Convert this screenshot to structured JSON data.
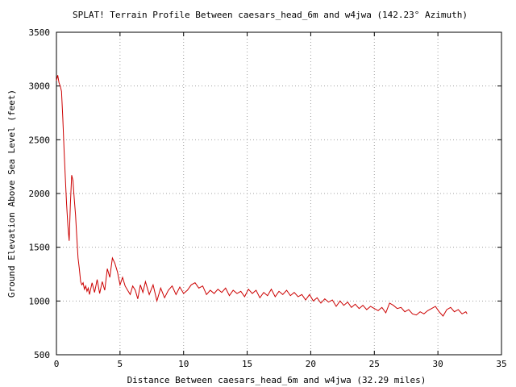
{
  "chart_data": {
    "type": "line",
    "title": "SPLAT! Terrain Profile Between caesars_head_6m and w4jwa (142.23° Azimuth)",
    "xlabel": "Distance Between caesars_head_6m and w4jwa (32.29 miles)",
    "ylabel": "Ground Elevation Above Sea Level (feet)",
    "xlim": [
      0,
      35
    ],
    "ylim": [
      500,
      3500
    ],
    "xticks": [
      0,
      5,
      10,
      15,
      20,
      25,
      30,
      35
    ],
    "yticks": [
      500,
      1000,
      1500,
      2000,
      2500,
      3000,
      3500
    ],
    "grid": true,
    "series": [
      {
        "color": "#cc0000",
        "x": [
          0.0,
          0.1,
          0.2,
          0.3,
          0.4,
          0.5,
          0.6,
          0.7,
          0.8,
          0.9,
          1.0,
          1.1,
          1.2,
          1.3,
          1.4,
          1.5,
          1.6,
          1.7,
          1.8,
          1.9,
          2.0,
          2.1,
          2.2,
          2.3,
          2.4,
          2.5,
          2.6,
          2.8,
          3.0,
          3.2,
          3.4,
          3.6,
          3.8,
          4.0,
          4.2,
          4.4,
          4.6,
          4.8,
          5.0,
          5.2,
          5.4,
          5.6,
          5.8,
          6.0,
          6.2,
          6.4,
          6.6,
          6.8,
          7.0,
          7.3,
          7.6,
          7.9,
          8.2,
          8.5,
          8.8,
          9.1,
          9.4,
          9.7,
          10.0,
          10.3,
          10.6,
          10.9,
          11.2,
          11.5,
          11.8,
          12.1,
          12.4,
          12.7,
          13.0,
          13.3,
          13.6,
          13.9,
          14.2,
          14.5,
          14.8,
          15.1,
          15.4,
          15.7,
          16.0,
          16.3,
          16.6,
          16.9,
          17.2,
          17.5,
          17.8,
          18.1,
          18.4,
          18.7,
          19.0,
          19.3,
          19.6,
          19.9,
          20.2,
          20.5,
          20.8,
          21.1,
          21.4,
          21.7,
          22.0,
          22.3,
          22.6,
          22.9,
          23.2,
          23.5,
          23.8,
          24.1,
          24.4,
          24.7,
          25.0,
          25.3,
          25.6,
          25.9,
          26.2,
          26.5,
          26.8,
          27.1,
          27.4,
          27.7,
          28.0,
          28.3,
          28.6,
          28.9,
          29.2,
          29.5,
          29.8,
          30.1,
          30.4,
          30.7,
          31.0,
          31.3,
          31.6,
          31.9,
          32.2,
          32.29
        ],
        "y": [
          3050,
          3100,
          3030,
          3000,
          2950,
          2700,
          2400,
          2150,
          1900,
          1700,
          1560,
          1900,
          2170,
          2120,
          1950,
          1800,
          1600,
          1400,
          1300,
          1180,
          1150,
          1170,
          1110,
          1140,
          1090,
          1120,
          1060,
          1170,
          1080,
          1200,
          1070,
          1180,
          1100,
          1300,
          1220,
          1400,
          1350,
          1270,
          1150,
          1220,
          1140,
          1100,
          1060,
          1140,
          1100,
          1020,
          1150,
          1080,
          1180,
          1060,
          1150,
          1000,
          1120,
          1030,
          1100,
          1140,
          1060,
          1130,
          1070,
          1100,
          1150,
          1170,
          1120,
          1140,
          1060,
          1100,
          1070,
          1110,
          1080,
          1120,
          1050,
          1100,
          1070,
          1090,
          1040,
          1110,
          1070,
          1100,
          1030,
          1080,
          1050,
          1110,
          1040,
          1090,
          1060,
          1100,
          1050,
          1080,
          1040,
          1060,
          1010,
          1060,
          1000,
          1030,
          980,
          1020,
          990,
          1010,
          950,
          1000,
          960,
          990,
          940,
          970,
          930,
          960,
          920,
          950,
          930,
          910,
          940,
          890,
          980,
          960,
          930,
          940,
          900,
          920,
          880,
          870,
          900,
          880,
          910,
          930,
          950,
          900,
          860,
          920,
          940,
          900,
          920,
          880,
          900,
          880
        ]
      }
    ]
  }
}
